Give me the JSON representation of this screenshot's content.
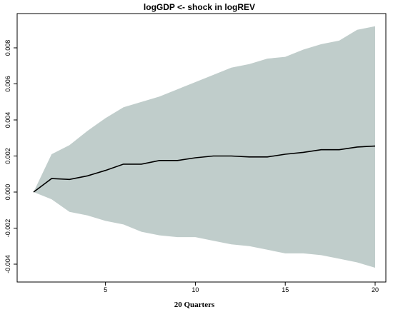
{
  "chart_data": {
    "type": "line",
    "title": "logGDP <- shock in logREV",
    "xlabel": "20 Quarters",
    "ylabel": "",
    "xlim": [
      1,
      20
    ],
    "ylim": [
      -0.0042,
      0.0092
    ],
    "x_ticks": [
      5,
      10,
      15,
      20
    ],
    "x_tick_labels": [
      "5",
      "10",
      "15",
      "20"
    ],
    "y_ticks": [
      -0.004,
      -0.002,
      0.0,
      0.002,
      0.004,
      0.006,
      0.008
    ],
    "y_tick_labels": [
      "-0.004",
      "-0.002",
      "0.000",
      "0.002",
      "0.004",
      "0.006",
      "0.008"
    ],
    "grid": false,
    "x": [
      1,
      2,
      3,
      4,
      5,
      6,
      7,
      8,
      9,
      10,
      11,
      12,
      13,
      14,
      15,
      16,
      17,
      18,
      19,
      20
    ],
    "series": [
      {
        "role": "response",
        "values": [
          0.0,
          0.00075,
          0.0007,
          0.0009,
          0.0012,
          0.00155,
          0.00155,
          0.00175,
          0.00175,
          0.0019,
          0.002,
          0.002,
          0.00195,
          0.00195,
          0.0021,
          0.0022,
          0.00235,
          0.00235,
          0.0025,
          0.00255
        ]
      },
      {
        "role": "upper_band",
        "values": [
          0.0,
          0.0021,
          0.0026,
          0.0034,
          0.0041,
          0.0047,
          0.005,
          0.0053,
          0.0057,
          0.0061,
          0.0065,
          0.0069,
          0.0071,
          0.0074,
          0.0075,
          0.0079,
          0.0082,
          0.0084,
          0.009,
          0.0092
        ]
      },
      {
        "role": "lower_band",
        "values": [
          0.0,
          -0.0004,
          -0.0011,
          -0.0013,
          -0.0016,
          -0.0018,
          -0.0022,
          -0.0024,
          -0.0025,
          -0.0025,
          -0.0027,
          -0.0029,
          -0.003,
          -0.0032,
          -0.0034,
          -0.0034,
          -0.0035,
          -0.0037,
          -0.0039,
          -0.0042
        ]
      }
    ],
    "colors": {
      "band": "#c0cdcb",
      "line": "#000000",
      "frame": "#000000"
    }
  }
}
